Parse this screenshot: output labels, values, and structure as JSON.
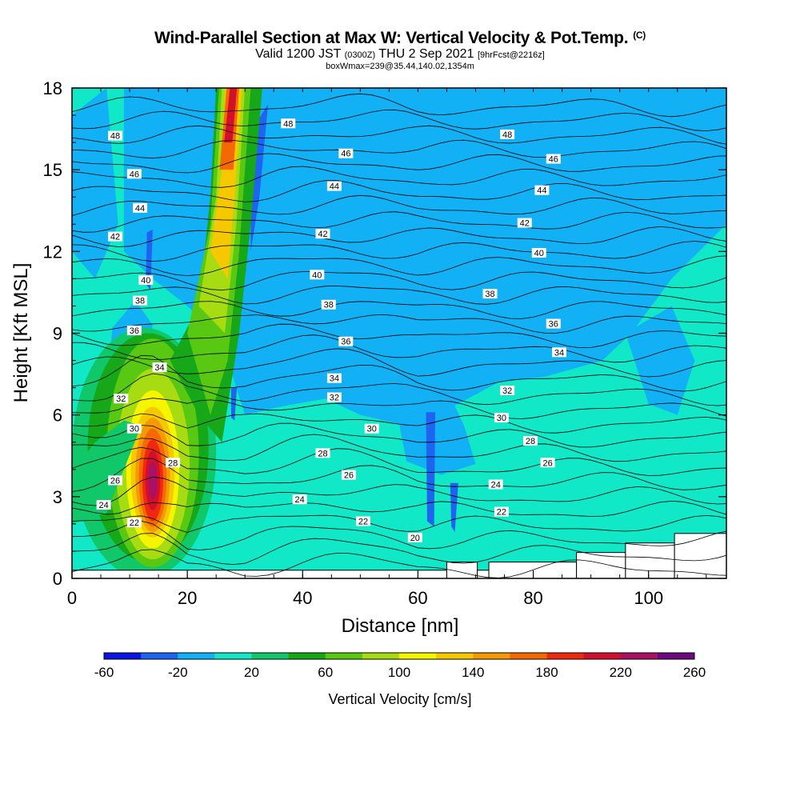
{
  "header": {
    "title": "Wind-Parallel Section at Max W: Vertical Velocity & Pot.Temp.",
    "copyright": "(C)",
    "valid_prefix": "Valid 1200 JST",
    "valid_utc": "(0300Z)",
    "valid_date": "THU 2 Sep 2021",
    "forecast": "[9hrFcst@2216z]",
    "boxwmax": "boxWmax=239@35.44,140.02,1354m"
  },
  "chart_data": {
    "type": "heatmap",
    "xlabel": "Distance [nm]",
    "ylabel": "Height [Kft MSL]",
    "xlim": [
      0,
      113.5
    ],
    "ylim": [
      0,
      18
    ],
    "xticks": [
      0,
      20,
      40,
      60,
      80,
      100
    ],
    "yticks": [
      0,
      3,
      6,
      9,
      12,
      15,
      18
    ],
    "colorbar": {
      "label": "Vertical Velocity [cm/s]",
      "ticks": [
        -60,
        -20,
        20,
        60,
        100,
        140,
        180,
        220,
        260
      ],
      "levels": [
        -60,
        -40,
        -20,
        0,
        20,
        40,
        60,
        80,
        100,
        120,
        140,
        160,
        180,
        200,
        220,
        240,
        260
      ],
      "colors": [
        "#0a14e6",
        "#1e64f0",
        "#12b0f5",
        "#10e8c8",
        "#10c86a",
        "#16a818",
        "#58c812",
        "#a8dc12",
        "#f5f500",
        "#f5c800",
        "#f59a00",
        "#f56a00",
        "#f02810",
        "#d2102c",
        "#aa1064",
        "#6e0a82"
      ]
    },
    "background_color": "#10e8c8",
    "updraft_plume": {
      "core_max_cms": 239,
      "core_x_nm": 14,
      "core_height_kft": 3.6
    },
    "theta_contours": [
      {
        "value": 20,
        "label_x": 59.5,
        "label_height": 1.5
      },
      {
        "value": 22,
        "label_x": 10.8,
        "label_height": 2.05
      },
      {
        "value": 22,
        "label_x": 50.5,
        "label_height": 2.1
      },
      {
        "value": 22,
        "label_x": 74.5,
        "label_height": 2.45
      },
      {
        "value": 24,
        "label_x": 5.5,
        "label_height": 2.7
      },
      {
        "value": 24,
        "label_x": 39.5,
        "label_height": 2.9
      },
      {
        "value": 24,
        "label_x": 73.5,
        "label_height": 3.45
      },
      {
        "value": 26,
        "label_x": 7.5,
        "label_height": 3.6
      },
      {
        "value": 26,
        "label_x": 48.0,
        "label_height": 3.8
      },
      {
        "value": 26,
        "label_x": 82.5,
        "label_height": 4.25
      },
      {
        "value": 28,
        "label_x": 17.5,
        "label_height": 4.25
      },
      {
        "value": 28,
        "label_x": 43.5,
        "label_height": 4.6
      },
      {
        "value": 28,
        "label_x": 79.5,
        "label_height": 5.05
      },
      {
        "value": 30,
        "label_x": 10.8,
        "label_height": 5.5
      },
      {
        "value": 30,
        "label_x": 52.0,
        "label_height": 5.5
      },
      {
        "value": 30,
        "label_x": 74.5,
        "label_height": 5.9
      },
      {
        "value": 32,
        "label_x": 8.5,
        "label_height": 6.6
      },
      {
        "value": 32,
        "label_x": 45.5,
        "label_height": 6.65
      },
      {
        "value": 32,
        "label_x": 75.5,
        "label_height": 6.9
      },
      {
        "value": 34,
        "label_x": 15.2,
        "label_height": 7.75
      },
      {
        "value": 34,
        "label_x": 45.5,
        "label_height": 7.35
      },
      {
        "value": 34,
        "label_x": 84.5,
        "label_height": 8.3
      },
      {
        "value": 36,
        "label_x": 10.8,
        "label_height": 9.1
      },
      {
        "value": 36,
        "label_x": 47.5,
        "label_height": 8.7
      },
      {
        "value": 36,
        "label_x": 83.5,
        "label_height": 9.35
      },
      {
        "value": 38,
        "label_x": 11.8,
        "label_height": 10.2
      },
      {
        "value": 38,
        "label_x": 44.5,
        "label_height": 10.05
      },
      {
        "value": 38,
        "label_x": 72.5,
        "label_height": 10.45
      },
      {
        "value": 40,
        "label_x": 12.8,
        "label_height": 10.95
      },
      {
        "value": 40,
        "label_x": 42.5,
        "label_height": 11.15
      },
      {
        "value": 40,
        "label_x": 81.0,
        "label_height": 11.95
      },
      {
        "value": 42,
        "label_x": 7.5,
        "label_height": 12.55
      },
      {
        "value": 42,
        "label_x": 43.5,
        "label_height": 12.65
      },
      {
        "value": 42,
        "label_x": 78.5,
        "label_height": 13.05
      },
      {
        "value": 44,
        "label_x": 11.8,
        "label_height": 13.6
      },
      {
        "value": 44,
        "label_x": 45.5,
        "label_height": 14.4
      },
      {
        "value": 44,
        "label_x": 81.5,
        "label_height": 14.25
      },
      {
        "value": 46,
        "label_x": 10.8,
        "label_height": 14.85
      },
      {
        "value": 46,
        "label_x": 47.5,
        "label_height": 15.6
      },
      {
        "value": 46,
        "label_x": 83.5,
        "label_height": 15.4
      },
      {
        "value": 48,
        "label_x": 7.5,
        "label_height": 16.25
      },
      {
        "value": 48,
        "label_x": 37.5,
        "label_height": 16.7
      },
      {
        "value": 48,
        "label_x": 75.5,
        "label_height": 16.3
      }
    ],
    "terrain_steps": [
      {
        "x0": 0,
        "x1": 65,
        "height": 0.3
      },
      {
        "x0": 65,
        "x1": 70.3,
        "height": 0.6
      },
      {
        "x0": 70.3,
        "x1": 72.3,
        "height": 0.3
      },
      {
        "x0": 72.3,
        "x1": 87.5,
        "height": 0.6
      },
      {
        "x0": 87.5,
        "x1": 96,
        "height": 0.95
      },
      {
        "x0": 96,
        "x1": 104.5,
        "height": 1.3
      },
      {
        "x0": 104.5,
        "x1": 113.5,
        "height": 1.65
      }
    ]
  }
}
